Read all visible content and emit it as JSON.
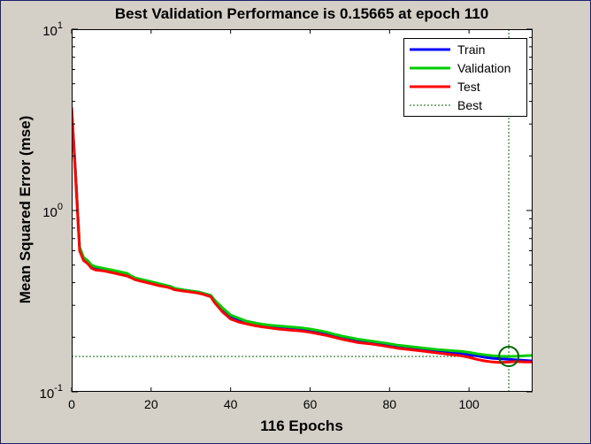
{
  "window": {
    "background": "#d4d0c8",
    "border_color": "#1e1e6e"
  },
  "chart_data": {
    "type": "line",
    "title": "Best Validation Performance is 0.15665 at epoch 110",
    "xlabel": "116 Epochs",
    "ylabel": "Mean Squared Error  (mse)",
    "xlim": [
      0,
      116
    ],
    "ylim": [
      0.1,
      10
    ],
    "yscale": "log",
    "grid": false,
    "legend_position": "top-right",
    "x_ticks": [
      0,
      20,
      40,
      60,
      80,
      100
    ],
    "y_ticks": [
      {
        "value": 0.1,
        "base": "10",
        "exp": "-1"
      },
      {
        "value": 1,
        "base": "10",
        "exp": "0"
      },
      {
        "value": 10,
        "base": "10",
        "exp": "1"
      }
    ],
    "series": [
      {
        "name": "Train",
        "color": "#0000ff",
        "x": [
          0,
          1,
          2,
          3,
          4,
          5,
          6,
          8,
          10,
          12,
          14,
          15,
          16,
          18,
          20,
          22,
          24,
          25,
          26,
          28,
          30,
          32,
          33,
          34,
          35,
          36,
          38,
          40,
          42,
          44,
          46,
          48,
          50,
          52,
          55,
          58,
          60,
          62,
          64,
          66,
          68,
          70,
          72,
          75,
          78,
          80,
          82,
          85,
          88,
          90,
          92,
          95,
          98,
          100,
          102,
          104,
          106,
          108,
          110,
          112,
          114,
          116
        ],
        "values": [
          3.6,
          1.6,
          0.62,
          0.54,
          0.52,
          0.49,
          0.48,
          0.47,
          0.46,
          0.45,
          0.44,
          0.43,
          0.42,
          0.41,
          0.4,
          0.39,
          0.385,
          0.38,
          0.37,
          0.365,
          0.36,
          0.355,
          0.35,
          0.345,
          0.34,
          0.32,
          0.285,
          0.26,
          0.25,
          0.245,
          0.24,
          0.235,
          0.232,
          0.229,
          0.226,
          0.223,
          0.22,
          0.215,
          0.21,
          0.205,
          0.2,
          0.196,
          0.192,
          0.188,
          0.184,
          0.181,
          0.178,
          0.175,
          0.172,
          0.17,
          0.168,
          0.165,
          0.163,
          0.16,
          0.158,
          0.155,
          0.153,
          0.152,
          0.151,
          0.15,
          0.149,
          0.148
        ]
      },
      {
        "name": "Validation",
        "color": "#00cc00",
        "x": [
          0,
          1,
          2,
          3,
          4,
          5,
          6,
          8,
          10,
          12,
          14,
          15,
          16,
          18,
          20,
          22,
          24,
          25,
          26,
          28,
          30,
          32,
          33,
          34,
          35,
          36,
          38,
          40,
          42,
          44,
          46,
          48,
          50,
          52,
          55,
          58,
          60,
          62,
          64,
          66,
          68,
          70,
          72,
          75,
          78,
          80,
          82,
          85,
          88,
          90,
          92,
          95,
          98,
          100,
          102,
          104,
          106,
          108,
          110,
          112,
          114,
          116
        ],
        "values": [
          3.5,
          1.55,
          0.63,
          0.55,
          0.53,
          0.5,
          0.49,
          0.48,
          0.47,
          0.46,
          0.45,
          0.435,
          0.425,
          0.415,
          0.405,
          0.395,
          0.385,
          0.38,
          0.372,
          0.365,
          0.36,
          0.355,
          0.35,
          0.345,
          0.34,
          0.32,
          0.29,
          0.265,
          0.255,
          0.245,
          0.24,
          0.236,
          0.233,
          0.231,
          0.228,
          0.225,
          0.222,
          0.218,
          0.214,
          0.208,
          0.203,
          0.199,
          0.195,
          0.191,
          0.187,
          0.184,
          0.181,
          0.178,
          0.175,
          0.173,
          0.171,
          0.169,
          0.167,
          0.165,
          0.162,
          0.16,
          0.158,
          0.157,
          0.15665,
          0.157,
          0.158,
          0.159
        ]
      },
      {
        "name": "Test",
        "color": "#ff0000",
        "x": [
          0,
          1,
          2,
          3,
          4,
          5,
          6,
          8,
          10,
          12,
          14,
          15,
          16,
          18,
          20,
          22,
          24,
          25,
          26,
          28,
          30,
          32,
          33,
          34,
          35,
          36,
          38,
          40,
          42,
          44,
          46,
          48,
          50,
          52,
          55,
          58,
          60,
          62,
          64,
          66,
          68,
          70,
          72,
          75,
          78,
          80,
          82,
          85,
          88,
          90,
          92,
          95,
          98,
          100,
          102,
          104,
          106,
          108,
          110,
          112,
          114,
          116
        ],
        "values": [
          3.7,
          1.5,
          0.6,
          0.53,
          0.51,
          0.48,
          0.47,
          0.465,
          0.455,
          0.445,
          0.435,
          0.425,
          0.415,
          0.405,
          0.395,
          0.385,
          0.378,
          0.372,
          0.365,
          0.36,
          0.355,
          0.35,
          0.345,
          0.34,
          0.335,
          0.31,
          0.275,
          0.252,
          0.243,
          0.237,
          0.232,
          0.228,
          0.225,
          0.222,
          0.219,
          0.216,
          0.213,
          0.209,
          0.205,
          0.2,
          0.195,
          0.191,
          0.187,
          0.184,
          0.18,
          0.177,
          0.174,
          0.171,
          0.168,
          0.166,
          0.164,
          0.161,
          0.158,
          0.155,
          0.151,
          0.148,
          0.146,
          0.145,
          0.146,
          0.147,
          0.146,
          0.146
        ]
      }
    ],
    "best": {
      "name": "Best",
      "color": "#006400",
      "epoch": 110,
      "value": 0.15665
    }
  }
}
